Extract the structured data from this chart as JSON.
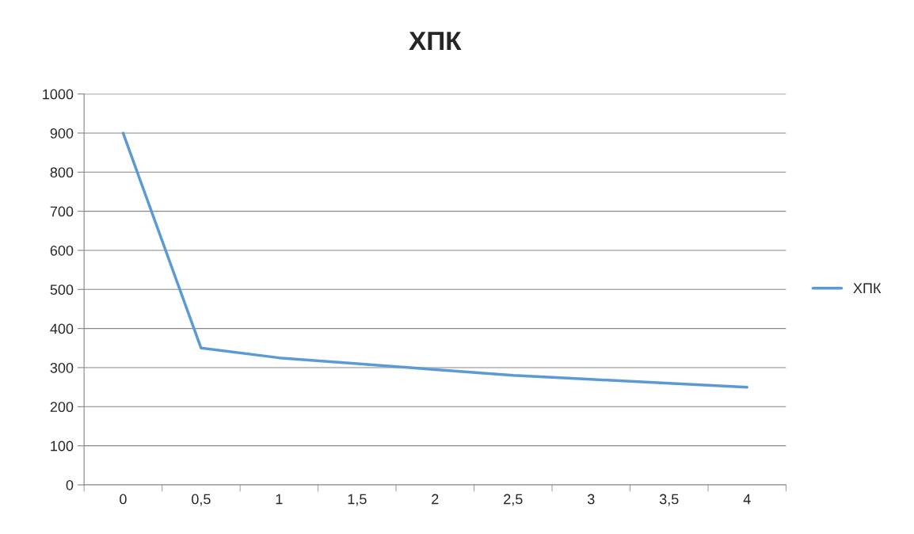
{
  "chart_data": {
    "type": "line",
    "title": "ХПК",
    "categories": [
      "0",
      "0,5",
      "1",
      "1,5",
      "2",
      "2,5",
      "3",
      "3,5",
      "4"
    ],
    "series": [
      {
        "name": "ХПК",
        "color": "#5b9bd5",
        "values": [
          900,
          350,
          325,
          310,
          295,
          280,
          270,
          260,
          250
        ]
      }
    ],
    "ylim": [
      0,
      1000
    ],
    "yticks": [
      0,
      100,
      200,
      300,
      400,
      500,
      600,
      700,
      800,
      900,
      1000
    ],
    "grid": "y",
    "legend": "right",
    "marker": "none",
    "line_style": "solid"
  }
}
